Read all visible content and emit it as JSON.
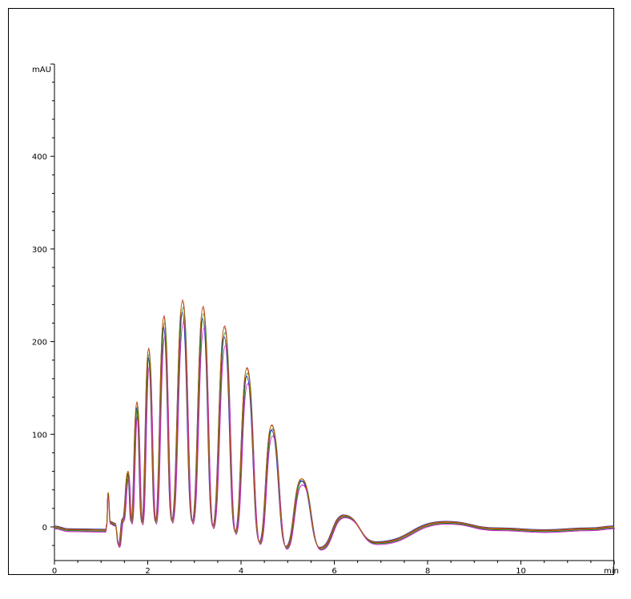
{
  "chart_data": {
    "type": "line",
    "title": "",
    "xlabel": "min",
    "ylabel": "mAU",
    "xlim": [
      0,
      12
    ],
    "ylim": [
      -36,
      500
    ],
    "x_ticks": [
      "0",
      "2",
      "4",
      "6",
      "8",
      "10"
    ],
    "y_ticks": [
      "0",
      "100",
      "200",
      "300",
      "400"
    ],
    "grid": false,
    "legend": "none",
    "baseline": -3,
    "start_spike": {
      "x": 1.15,
      "y": 37
    },
    "peaks": [
      {
        "x": 1.38,
        "y": -20
      },
      {
        "x": 1.47,
        "y": 8
      },
      {
        "x": 1.58,
        "y": 60
      },
      {
        "x": 1.77,
        "y": 135
      },
      {
        "x": 2.02,
        "y": 193
      },
      {
        "x": 2.35,
        "y": 228
      },
      {
        "x": 2.75,
        "y": 245
      },
      {
        "x": 3.19,
        "y": 238
      },
      {
        "x": 3.65,
        "y": 217
      },
      {
        "x": 4.13,
        "y": 172
      },
      {
        "x": 4.66,
        "y": 110
      },
      {
        "x": 5.3,
        "y": 52
      },
      {
        "x": 6.21,
        "y": 12
      },
      {
        "x": 8.4,
        "y": 5
      }
    ],
    "valleys": [
      {
        "x": 1.65,
        "y": 5
      },
      {
        "x": 1.88,
        "y": 4
      },
      {
        "x": 2.17,
        "y": 5
      },
      {
        "x": 2.52,
        "y": 6
      },
      {
        "x": 2.96,
        "y": 5
      },
      {
        "x": 3.4,
        "y": 0
      },
      {
        "x": 3.88,
        "y": -6
      },
      {
        "x": 4.4,
        "y": -17
      },
      {
        "x": 4.97,
        "y": -22
      },
      {
        "x": 5.7,
        "y": -23
      },
      {
        "x": 6.9,
        "y": -17
      }
    ],
    "series": [
      {
        "color": "#cc2222"
      },
      {
        "color": "#1a8a1a"
      },
      {
        "color": "#2222cc"
      },
      {
        "color": "#cc22cc"
      },
      {
        "color": "#aa6600"
      }
    ]
  }
}
